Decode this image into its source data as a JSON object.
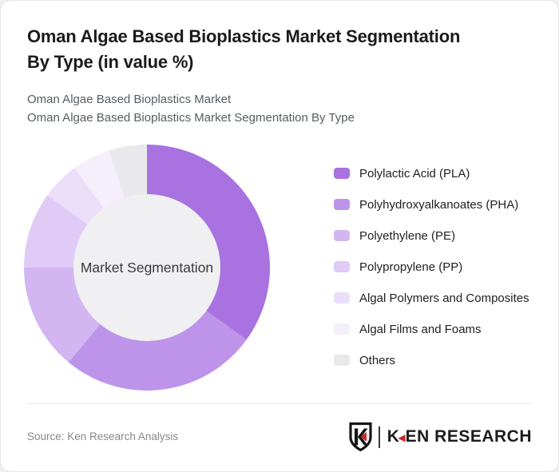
{
  "header": {
    "title_line1": "Oman Algae Based Bioplastics Market Segmentation",
    "title_line2": "By Type (in value %)",
    "subtitle_line1": "Oman Algae Based Bioplastics Market",
    "subtitle_line2": "Oman Algae Based Bioplastics Market Segmentation By Type"
  },
  "chart_data": {
    "type": "pie",
    "subtype": "donut",
    "title": "Oman Algae Based Bioplastics Market Segmentation By Type (in value %)",
    "center_label": "Market Segmentation",
    "unit": "%",
    "categories": [
      "Polylactic Acid (PLA)",
      "Polyhydroxyalkanoates (PHA)",
      "Polyethylene (PE)",
      "Polypropylene (PP)",
      "Algal Polymers and Composites",
      "Algal Films and Foams",
      "Others"
    ],
    "values": [
      35,
      26,
      14,
      10,
      5,
      5,
      5
    ],
    "colors": [
      "#a872e1",
      "#bd94ea",
      "#d3b6f1",
      "#dfcbf5",
      "#eadef9",
      "#f5effc",
      "#e9e9eb"
    ],
    "inner_circle_color": "#f0eff1",
    "start_angle_deg": 0,
    "direction": "clockwise",
    "legend_position": "right",
    "data_labels_shown": false
  },
  "footer": {
    "source_text": "Source: Ken Research Analysis",
    "logo_text_k": "K",
    "logo_text_rest": "EN RESEARCH",
    "logo_red": "#c9252c",
    "logo_black": "#1c1c1c"
  }
}
